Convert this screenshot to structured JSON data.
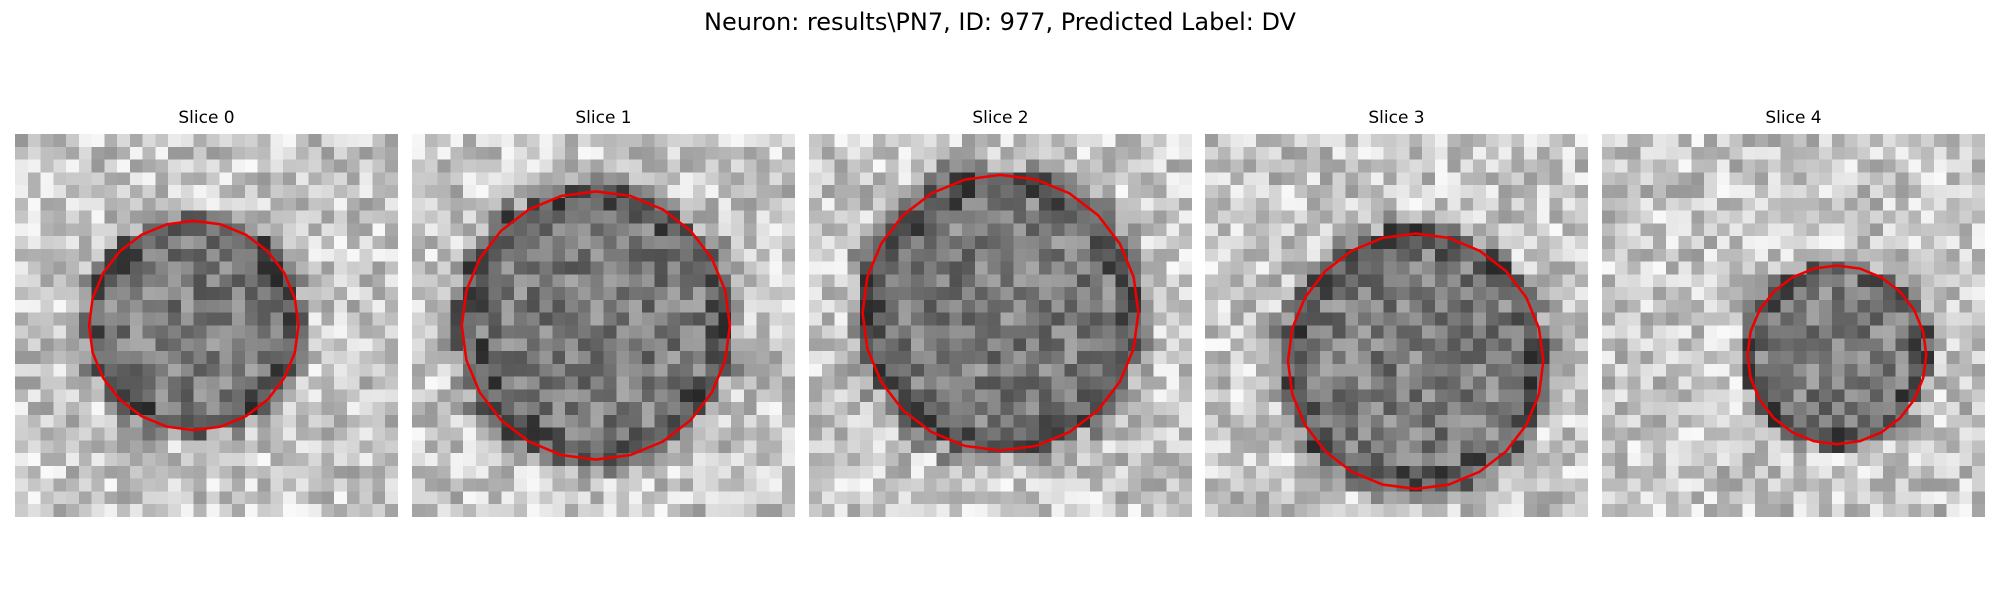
{
  "title": "Neuron: results\\PN7, ID: 977, Predicted Label: DV",
  "panels": [
    {
      "title": "Slice 0"
    },
    {
      "title": "Slice 1"
    },
    {
      "title": "Slice 2"
    },
    {
      "title": "Slice 3"
    },
    {
      "title": "Slice 4"
    }
  ]
}
